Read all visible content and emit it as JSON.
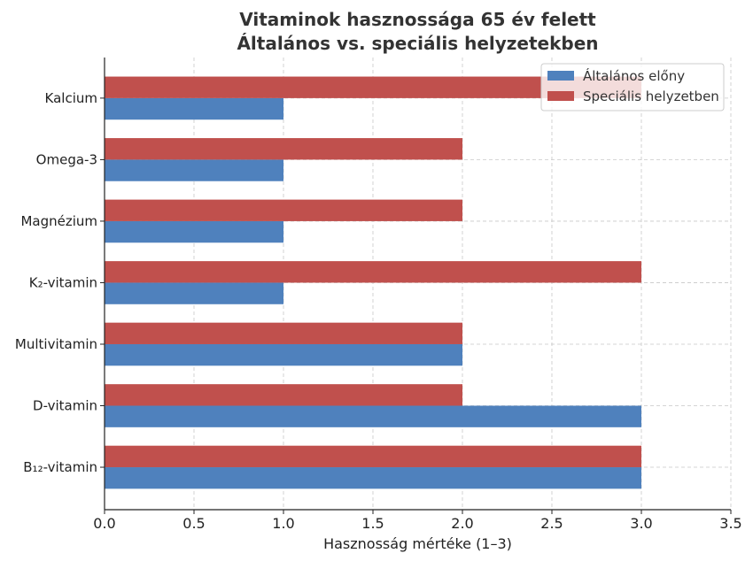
{
  "chart_data": {
    "type": "bar",
    "orientation": "horizontal",
    "title": "Vitaminok hasznossága 65 év felett\nÁltalános vs. speciális helyzetekben",
    "xlabel": "Hasznosság mértéke (1–3)",
    "ylabel": "",
    "categories": [
      "B₁₂-vitamin",
      "D-vitamin",
      "Multivitamin",
      "K₂-vitamin",
      "Magnézium",
      "Omega-3",
      "Kalcium"
    ],
    "series": [
      {
        "name": "Általános előny",
        "color": "#4f81bd",
        "values": [
          3,
          3,
          2,
          1,
          1,
          1,
          1
        ]
      },
      {
        "name": "Speciális helyzetben",
        "color": "#c0504d",
        "values": [
          3,
          2,
          2,
          3,
          2,
          2,
          3
        ]
      }
    ],
    "xlim": [
      0,
      3.5
    ],
    "xticks": [
      "0.0",
      "0.5",
      "1.0",
      "1.5",
      "2.0",
      "2.5",
      "3.0",
      "3.5"
    ],
    "grid": true,
    "legend": "top-right"
  }
}
